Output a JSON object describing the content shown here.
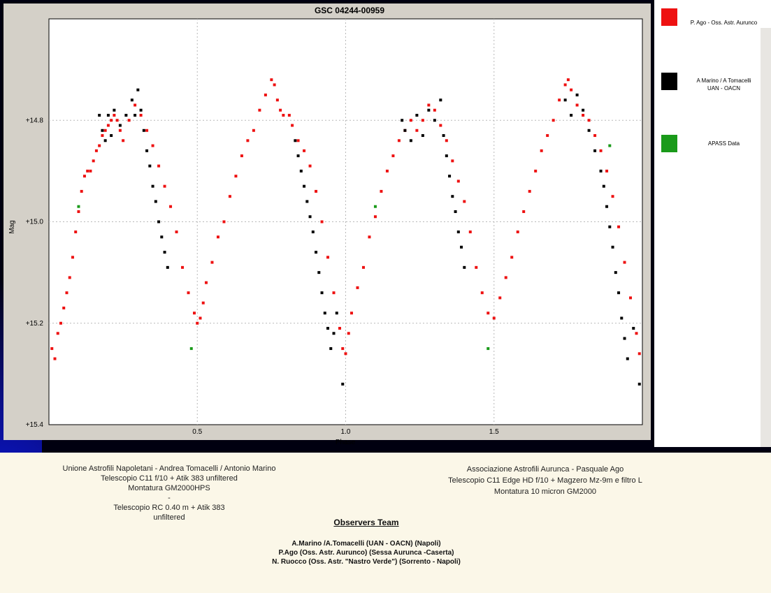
{
  "chart_data": {
    "type": "scatter",
    "title": "GSC 04244-00959",
    "xlabel": "Phase",
    "ylabel": "Mag",
    "xlim": [
      0.0,
      2.0
    ],
    "ylim": [
      14.6,
      15.4
    ],
    "y_inverted": true,
    "x_ticks": [
      "0.5",
      "1.0",
      "1.5"
    ],
    "x_tick_values": [
      0.5,
      1.0,
      1.5
    ],
    "y_ticks": [
      "+14.8",
      "+15.0",
      "+15.2",
      "+15.4"
    ],
    "y_tick_values": [
      14.8,
      15.0,
      15.2,
      15.4
    ],
    "grid": true,
    "series": [
      {
        "name": "P. Ago - Oss. Astr. Aurunco",
        "color": "#ee1111",
        "points": [
          [
            0.01,
            15.25
          ],
          [
            0.02,
            15.27
          ],
          [
            0.03,
            15.22
          ],
          [
            0.04,
            15.2
          ],
          [
            0.05,
            15.17
          ],
          [
            0.06,
            15.14
          ],
          [
            0.07,
            15.11
          ],
          [
            0.08,
            15.07
          ],
          [
            0.09,
            15.02
          ],
          [
            0.1,
            14.98
          ],
          [
            0.11,
            14.94
          ],
          [
            0.12,
            14.91
          ],
          [
            0.13,
            14.9
          ],
          [
            0.14,
            14.9
          ],
          [
            0.15,
            14.88
          ],
          [
            0.16,
            14.86
          ],
          [
            0.17,
            14.85
          ],
          [
            0.18,
            14.83
          ],
          [
            0.19,
            14.82
          ],
          [
            0.2,
            14.81
          ],
          [
            0.21,
            14.8
          ],
          [
            0.22,
            14.79
          ],
          [
            0.23,
            14.8
          ],
          [
            0.24,
            14.82
          ],
          [
            0.25,
            14.84
          ],
          [
            0.27,
            14.8
          ],
          [
            0.29,
            14.77
          ],
          [
            0.31,
            14.79
          ],
          [
            0.33,
            14.82
          ],
          [
            0.35,
            14.85
          ],
          [
            0.37,
            14.89
          ],
          [
            0.39,
            14.93
          ],
          [
            0.41,
            14.97
          ],
          [
            0.43,
            15.02
          ],
          [
            0.45,
            15.09
          ],
          [
            0.47,
            15.14
          ],
          [
            0.49,
            15.18
          ],
          [
            0.5,
            15.2
          ],
          [
            0.51,
            15.19
          ],
          [
            0.52,
            15.16
          ],
          [
            0.53,
            15.12
          ],
          [
            0.55,
            15.08
          ],
          [
            0.57,
            15.03
          ],
          [
            0.59,
            15.0
          ],
          [
            0.61,
            14.95
          ],
          [
            0.63,
            14.91
          ],
          [
            0.65,
            14.87
          ],
          [
            0.67,
            14.84
          ],
          [
            0.69,
            14.82
          ],
          [
            0.71,
            14.78
          ],
          [
            0.73,
            14.75
          ],
          [
            0.75,
            14.72
          ],
          [
            0.76,
            14.73
          ],
          [
            0.77,
            14.76
          ],
          [
            0.78,
            14.78
          ],
          [
            0.79,
            14.79
          ],
          [
            0.81,
            14.79
          ],
          [
            0.82,
            14.81
          ],
          [
            0.84,
            14.84
          ],
          [
            0.86,
            14.86
          ],
          [
            0.88,
            14.89
          ],
          [
            0.9,
            14.94
          ],
          [
            0.92,
            15.0
          ],
          [
            0.94,
            15.07
          ],
          [
            0.96,
            15.14
          ],
          [
            0.98,
            15.21
          ],
          [
            0.99,
            15.25
          ],
          [
            1.0,
            15.26
          ],
          [
            1.01,
            15.22
          ],
          [
            1.02,
            15.18
          ],
          [
            1.04,
            15.13
          ],
          [
            1.06,
            15.09
          ],
          [
            1.08,
            15.03
          ],
          [
            1.1,
            14.99
          ],
          [
            1.12,
            14.94
          ],
          [
            1.14,
            14.9
          ],
          [
            1.16,
            14.87
          ],
          [
            1.18,
            14.84
          ],
          [
            1.2,
            14.82
          ],
          [
            1.22,
            14.8
          ],
          [
            1.24,
            14.82
          ],
          [
            1.26,
            14.8
          ],
          [
            1.28,
            14.77
          ],
          [
            1.3,
            14.78
          ],
          [
            1.32,
            14.81
          ],
          [
            1.34,
            14.84
          ],
          [
            1.36,
            14.88
          ],
          [
            1.38,
            14.92
          ],
          [
            1.4,
            14.96
          ],
          [
            1.42,
            15.02
          ],
          [
            1.44,
            15.09
          ],
          [
            1.46,
            15.14
          ],
          [
            1.48,
            15.18
          ],
          [
            1.5,
            15.19
          ],
          [
            1.52,
            15.15
          ],
          [
            1.54,
            15.11
          ],
          [
            1.56,
            15.07
          ],
          [
            1.58,
            15.02
          ],
          [
            1.6,
            14.98
          ],
          [
            1.62,
            14.94
          ],
          [
            1.64,
            14.9
          ],
          [
            1.66,
            14.86
          ],
          [
            1.68,
            14.83
          ],
          [
            1.7,
            14.8
          ],
          [
            1.72,
            14.76
          ],
          [
            1.74,
            14.73
          ],
          [
            1.75,
            14.72
          ],
          [
            1.76,
            14.74
          ],
          [
            1.78,
            14.77
          ],
          [
            1.8,
            14.79
          ],
          [
            1.82,
            14.8
          ],
          [
            1.84,
            14.83
          ],
          [
            1.86,
            14.86
          ],
          [
            1.88,
            14.9
          ],
          [
            1.9,
            14.95
          ],
          [
            1.92,
            15.01
          ],
          [
            1.94,
            15.08
          ],
          [
            1.96,
            15.15
          ],
          [
            1.98,
            15.22
          ],
          [
            1.99,
            15.26
          ]
        ]
      },
      {
        "name": "A Marino / A Tomacelli UAN - OACN",
        "color": "#000000",
        "points": [
          [
            0.17,
            14.79
          ],
          [
            0.18,
            14.82
          ],
          [
            0.19,
            14.84
          ],
          [
            0.2,
            14.79
          ],
          [
            0.21,
            14.83
          ],
          [
            0.22,
            14.78
          ],
          [
            0.24,
            14.81
          ],
          [
            0.26,
            14.79
          ],
          [
            0.28,
            14.76
          ],
          [
            0.29,
            14.79
          ],
          [
            0.3,
            14.74
          ],
          [
            0.31,
            14.78
          ],
          [
            0.32,
            14.82
          ],
          [
            0.33,
            14.86
          ],
          [
            0.34,
            14.89
          ],
          [
            0.35,
            14.93
          ],
          [
            0.36,
            14.96
          ],
          [
            0.37,
            15.0
          ],
          [
            0.38,
            15.03
          ],
          [
            0.39,
            15.06
          ],
          [
            0.4,
            15.09
          ],
          [
            0.83,
            14.84
          ],
          [
            0.84,
            14.87
          ],
          [
            0.85,
            14.9
          ],
          [
            0.86,
            14.93
          ],
          [
            0.87,
            14.96
          ],
          [
            0.88,
            14.99
          ],
          [
            0.89,
            15.02
          ],
          [
            0.9,
            15.06
          ],
          [
            0.91,
            15.1
          ],
          [
            0.92,
            15.14
          ],
          [
            0.93,
            15.18
          ],
          [
            0.94,
            15.21
          ],
          [
            0.95,
            15.25
          ],
          [
            0.96,
            15.22
          ],
          [
            0.97,
            15.18
          ],
          [
            0.99,
            15.32
          ],
          [
            1.19,
            14.8
          ],
          [
            1.2,
            14.82
          ],
          [
            1.22,
            14.84
          ],
          [
            1.24,
            14.79
          ],
          [
            1.26,
            14.83
          ],
          [
            1.28,
            14.78
          ],
          [
            1.3,
            14.8
          ],
          [
            1.32,
            14.76
          ],
          [
            1.33,
            14.83
          ],
          [
            1.34,
            14.87
          ],
          [
            1.35,
            14.91
          ],
          [
            1.36,
            14.95
          ],
          [
            1.37,
            14.98
          ],
          [
            1.38,
            15.02
          ],
          [
            1.39,
            15.05
          ],
          [
            1.4,
            15.09
          ],
          [
            1.74,
            14.76
          ],
          [
            1.76,
            14.79
          ],
          [
            1.78,
            14.75
          ],
          [
            1.8,
            14.78
          ],
          [
            1.82,
            14.82
          ],
          [
            1.84,
            14.86
          ],
          [
            1.86,
            14.9
          ],
          [
            1.87,
            14.93
          ],
          [
            1.88,
            14.97
          ],
          [
            1.89,
            15.01
          ],
          [
            1.9,
            15.05
          ],
          [
            1.91,
            15.1
          ],
          [
            1.92,
            15.14
          ],
          [
            1.93,
            15.19
          ],
          [
            1.94,
            15.23
          ],
          [
            1.95,
            15.27
          ],
          [
            1.97,
            15.21
          ],
          [
            1.99,
            15.32
          ]
        ]
      },
      {
        "name": "APASS Data",
        "color": "#1a9a1a",
        "points": [
          [
            0.1,
            14.97
          ],
          [
            0.48,
            15.25
          ],
          [
            1.1,
            14.97
          ],
          [
            1.48,
            15.25
          ],
          [
            1.89,
            14.85
          ]
        ]
      }
    ]
  },
  "legend": {
    "items": [
      {
        "label": "P. Ago - Oss. Astr. Aurunco",
        "color": "#ee1111"
      },
      {
        "label_line1": "A Marino / A Tomacelli",
        "label_line2": "UAN - OACN",
        "color": "#000000"
      },
      {
        "label": "APASS Data",
        "color": "#1a9a1a"
      }
    ]
  },
  "info": {
    "left_lines": [
      "Unione Astrofili Napoletani - Andrea Tomacelli / Antonio Marino",
      "Telescopio C11 f/10 + Atik 383 unfiltered",
      "Montatura GM2000HPS",
      "-",
      "Telescopio RC 0.40 m + Atik 383",
      "unfiltered"
    ],
    "right_lines": [
      "Associazione Astrofili Aurunca - Pasquale Ago",
      "Telescopio C11 Edge HD f/10 + Magzero Mz-9m e filtro L",
      "Montatura 10 micron GM2000"
    ],
    "observers_title": "Observers Team",
    "observers": [
      "A.Marino /A.Tomacelli (UAN - OACN) (Napoli)",
      "P.Ago (Oss. Astr. Aurunco) (Sessa Aurunca -Caserta)",
      "N. Ruocco (Oss. Astr. \"Nastro Verde\") (Sorrento - Napoli)"
    ]
  }
}
